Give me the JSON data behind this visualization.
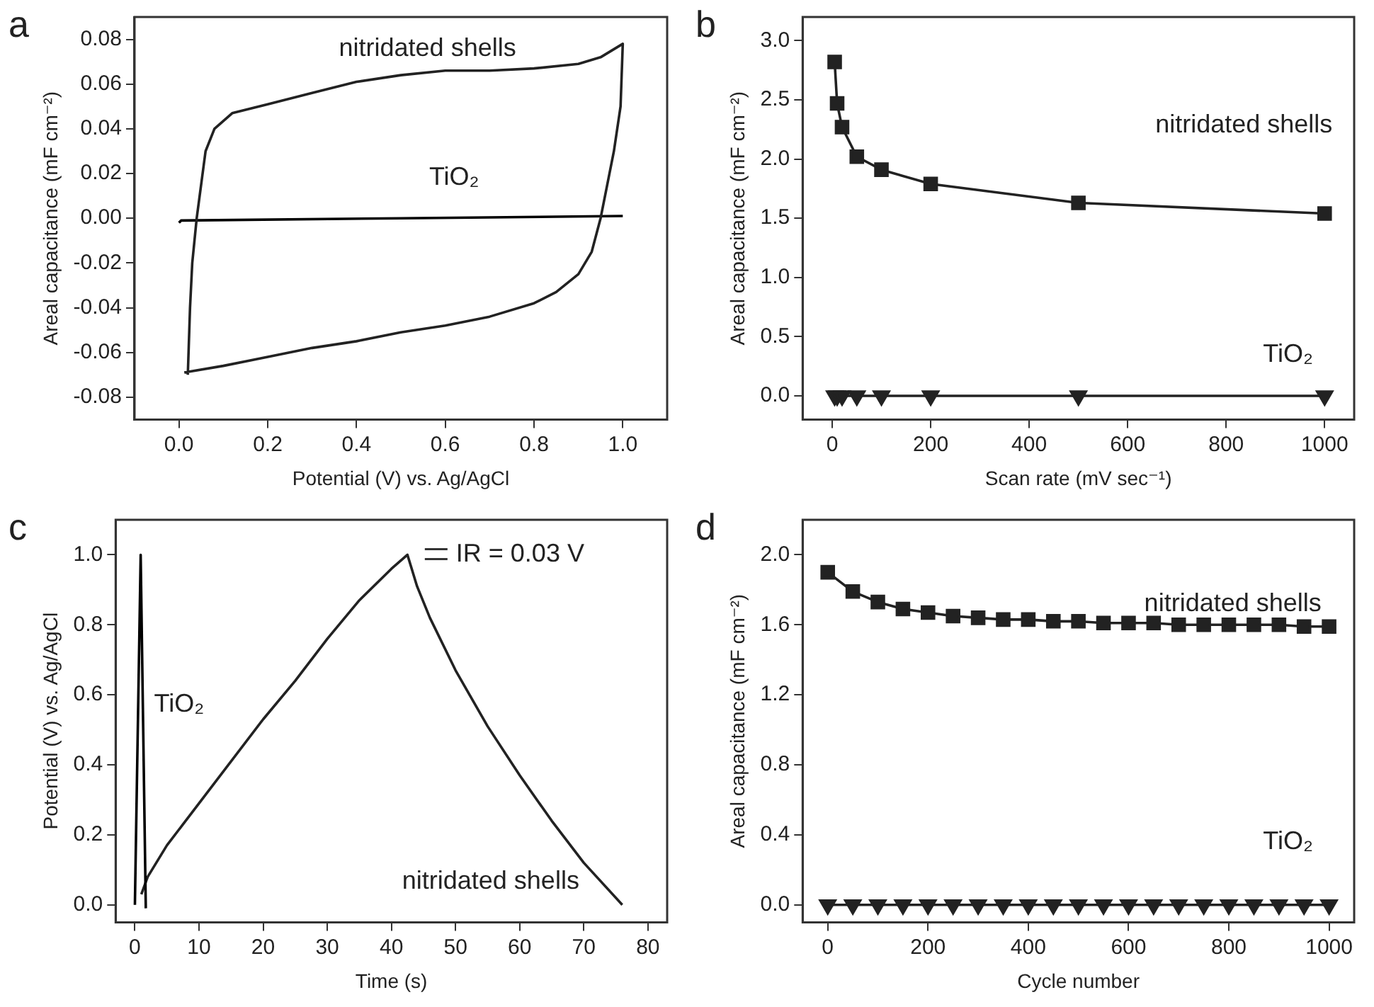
{
  "chart_data": [
    {
      "type": "line",
      "title": "a",
      "xlabel": "Potential (V) vs. Ag/AgCl",
      "ylabel": "Areal capacitance (mF cm⁻²)",
      "xlim": [
        -0.1,
        1.1
      ],
      "xticks": [
        {
          "value": 0,
          "label": "0.0"
        },
        0.2,
        0.4,
        0.6,
        0.8,
        {
          "value": 1,
          "label": "1.0"
        }
      ],
      "ylim": [
        -0.09,
        0.09
      ],
      "yticks": [
        -0.08,
        -0.06,
        -0.04,
        -0.02,
        {
          "value": 0,
          "label": "0.00"
        },
        0.02,
        0.04,
        0.06,
        0.08
      ],
      "series": [
        {
          "name": "nitridated shells",
          "color": "#222222",
          "marker": "none",
          "x": [
            0.02,
            0.025,
            0.03,
            0.04,
            0.06,
            0.08,
            0.12,
            0.2,
            0.3,
            0.4,
            0.5,
            0.6,
            0.7,
            0.8,
            0.9,
            0.95,
            1.0,
            0.995,
            0.98,
            0.96,
            0.95,
            0.93,
            0.9,
            0.85,
            0.8,
            0.7,
            0.6,
            0.5,
            0.4,
            0.3,
            0.2,
            0.1,
            0.012
          ],
          "values": [
            -0.07,
            -0.04,
            -0.02,
            0.0,
            0.03,
            0.04,
            0.047,
            0.051,
            0.056,
            0.061,
            0.064,
            0.066,
            0.066,
            0.067,
            0.069,
            0.072,
            0.078,
            0.05,
            0.03,
            0.01,
            0.0,
            -0.015,
            -0.025,
            -0.033,
            -0.038,
            -0.044,
            -0.048,
            -0.051,
            -0.055,
            -0.058,
            -0.062,
            -0.066,
            -0.069
          ]
        },
        {
          "name": "TiO₂",
          "color": "#000000",
          "marker": "none",
          "x": [
            0.0,
            0.005,
            0.5,
            1.0
          ],
          "values": [
            -0.002,
            -0.001,
            0.0,
            0.001
          ]
        }
      ]
    },
    {
      "type": "line",
      "title": "b",
      "xlabel": "Scan rate (mV sec⁻¹)",
      "ylabel": "Areal capacitance (mF cm⁻²)",
      "xlim": [
        -60,
        1060
      ],
      "xticks": [
        0,
        200,
        400,
        600,
        800,
        1000
      ],
      "ylim": [
        -0.2,
        3.2
      ],
      "yticks": [
        {
          "value": 0,
          "label": "0.0"
        },
        0.5,
        {
          "value": 1,
          "label": "1.0"
        },
        1.5,
        {
          "value": 2,
          "label": "2.0"
        },
        2.5,
        {
          "value": 3,
          "label": "3.0"
        }
      ],
      "x": [
        5,
        10,
        20,
        50,
        100,
        200,
        500,
        1000
      ],
      "series": [
        {
          "name": "nitridated shells",
          "color": "#222222",
          "marker": "square",
          "values": [
            2.82,
            2.47,
            2.27,
            2.02,
            1.91,
            1.79,
            1.63,
            1.54
          ]
        },
        {
          "name": "TiO₂",
          "color": "#222222",
          "marker": "triangle",
          "values": [
            0,
            0,
            0,
            0,
            0,
            0,
            0,
            0
          ]
        }
      ]
    },
    {
      "type": "line",
      "title": "c",
      "xlabel": "Time (s)",
      "ylabel": "Potential (V) vs. Ag/AgCl",
      "xlim": [
        -3,
        83
      ],
      "xticks": [
        0,
        10,
        20,
        30,
        40,
        50,
        60,
        70,
        80
      ],
      "ylim": [
        -0.05,
        1.1
      ],
      "yticks": [
        {
          "value": 0,
          "label": "0.0"
        },
        0.2,
        0.4,
        0.6,
        0.8,
        {
          "value": 1,
          "label": "1.0"
        }
      ],
      "annotations": [
        {
          "text": "IR = 0.03 V",
          "x": 43,
          "y": 1.0
        }
      ],
      "series": [
        {
          "name": "TiO₂",
          "color": "#000000",
          "marker": "none",
          "x": [
            0,
            0.9,
            1.7
          ],
          "values": [
            0,
            1.0,
            -0.01
          ]
        },
        {
          "name": "nitridated shells",
          "color": "#222222",
          "marker": "none",
          "x": [
            1.0,
            2,
            5,
            10,
            20,
            25,
            30,
            35,
            40,
            42.5,
            43,
            44,
            46,
            50,
            55,
            60,
            65,
            70,
            76
          ],
          "values": [
            0.03,
            0.08,
            0.17,
            0.29,
            0.53,
            0.64,
            0.76,
            0.87,
            0.96,
            1.0,
            0.97,
            0.91,
            0.82,
            0.67,
            0.51,
            0.37,
            0.24,
            0.12,
            0.0
          ]
        }
      ]
    },
    {
      "type": "line",
      "title": "d",
      "xlabel": "Cycle number",
      "ylabel": "Areal capacitance (mF cm⁻²)",
      "xlim": [
        -50,
        1050
      ],
      "xticks": [
        0,
        200,
        400,
        600,
        800,
        1000
      ],
      "ylim": [
        -0.1,
        2.2
      ],
      "yticks": [
        {
          "value": 0,
          "label": "0.0"
        },
        0.4,
        0.8,
        1.2,
        1.6,
        {
          "value": 2,
          "label": "2.0"
        }
      ],
      "x": [
        0,
        50,
        100,
        150,
        200,
        250,
        300,
        350,
        400,
        450,
        500,
        550,
        600,
        650,
        700,
        750,
        800,
        850,
        900,
        950,
        1000
      ],
      "series": [
        {
          "name": "nitridated shells",
          "color": "#222222",
          "marker": "square",
          "values": [
            1.9,
            1.79,
            1.73,
            1.69,
            1.67,
            1.65,
            1.64,
            1.63,
            1.63,
            1.62,
            1.62,
            1.61,
            1.61,
            1.61,
            1.6,
            1.6,
            1.6,
            1.6,
            1.6,
            1.59,
            1.59
          ]
        },
        {
          "name": "TiO₂",
          "color": "#222222",
          "marker": "triangle",
          "values": [
            0,
            0,
            0,
            0,
            0,
            0,
            0,
            0,
            0,
            0,
            0,
            0,
            0,
            0,
            0,
            0,
            0,
            0,
            0,
            0,
            0
          ]
        }
      ]
    }
  ]
}
